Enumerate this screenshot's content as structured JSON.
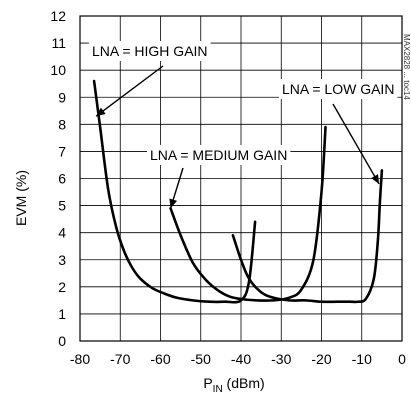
{
  "chart_data": {
    "type": "line",
    "title": "",
    "xlabel": "P",
    "xlabel_sub": "IN",
    "xlabel_unit": " (dBm)",
    "ylabel": "EVM (%)",
    "xlim": [
      -80,
      0
    ],
    "ylim": [
      0,
      12
    ],
    "x_ticks": [
      "-80",
      "-70",
      "-60",
      "-50",
      "-40",
      "-30",
      "-20",
      "-10",
      "0"
    ],
    "y_ticks": [
      "0",
      "1",
      "2",
      "3",
      "4",
      "5",
      "6",
      "7",
      "8",
      "9",
      "10",
      "11",
      "12"
    ],
    "grid": true,
    "series": [
      {
        "name": "LNA = HIGH GAIN",
        "x": [
          -76.5,
          -75,
          -73,
          -71,
          -69,
          -67,
          -65,
          -62,
          -59,
          -56,
          -52,
          -48,
          -44,
          -40,
          -38,
          -36.5
        ],
        "y": [
          9.6,
          7.9,
          5.6,
          4.2,
          3.3,
          2.7,
          2.3,
          1.95,
          1.75,
          1.6,
          1.5,
          1.45,
          1.45,
          1.5,
          2.2,
          4.4
        ]
      },
      {
        "name": "LNA = MEDIUM GAIN",
        "x": [
          -57.5,
          -55,
          -52,
          -49,
          -46,
          -43,
          -40,
          -36,
          -32,
          -28,
          -25,
          -22,
          -20,
          -19
        ],
        "y": [
          4.9,
          3.9,
          2.9,
          2.3,
          1.9,
          1.65,
          1.55,
          1.5,
          1.5,
          1.6,
          1.9,
          3.0,
          5.5,
          7.9
        ]
      },
      {
        "name": "LNA = LOW GAIN",
        "x": [
          -42,
          -40,
          -38,
          -35,
          -32,
          -28,
          -24,
          -20,
          -16,
          -13,
          -11,
          -9,
          -7,
          -6,
          -5.5,
          -5
        ],
        "y": [
          3.9,
          3.0,
          2.3,
          1.8,
          1.6,
          1.5,
          1.5,
          1.45,
          1.45,
          1.45,
          1.45,
          1.55,
          2.3,
          3.7,
          5.1,
          6.3
        ]
      }
    ],
    "annotations": [
      {
        "text": "LNA = HIGH GAIN",
        "series": 0
      },
      {
        "text": "LNA = MEDIUM GAIN",
        "series": 1
      },
      {
        "text": "LNA = LOW GAIN",
        "series": 2
      }
    ],
    "watermark": "MAX2828 ... toc14"
  }
}
